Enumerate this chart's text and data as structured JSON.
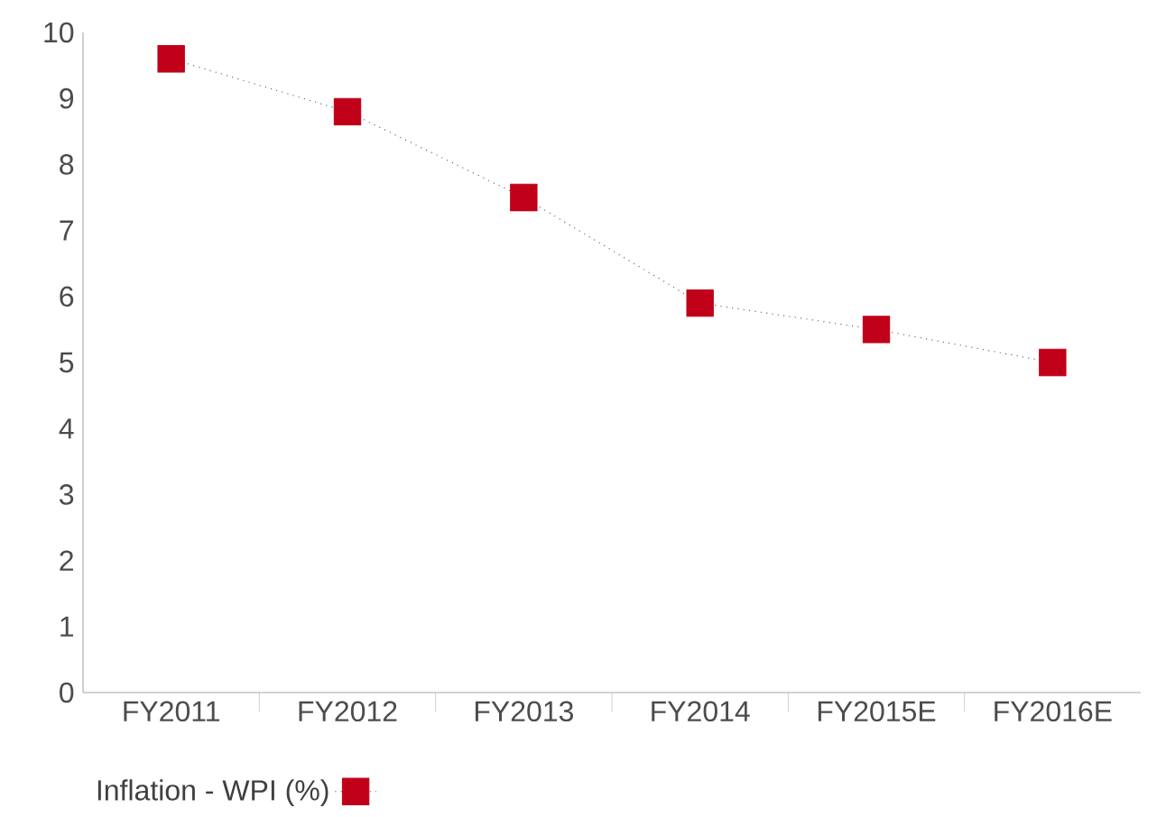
{
  "chart_data": {
    "type": "line",
    "categories": [
      "FY2011",
      "FY2012",
      "FY2013",
      "FY2014",
      "FY2015E",
      "FY2016E"
    ],
    "series": [
      {
        "name": "Inflation - WPI (%)",
        "color": "#c00018",
        "values": [
          9.6,
          8.8,
          7.5,
          5.9,
          5.5,
          5.0
        ]
      }
    ],
    "ylim": [
      0,
      10
    ],
    "yticks": [
      0,
      1,
      2,
      3,
      4,
      5,
      6,
      7,
      8,
      9,
      10
    ],
    "marker": "square",
    "line_style": "dotted",
    "legend": "bottom left",
    "grid": false
  }
}
